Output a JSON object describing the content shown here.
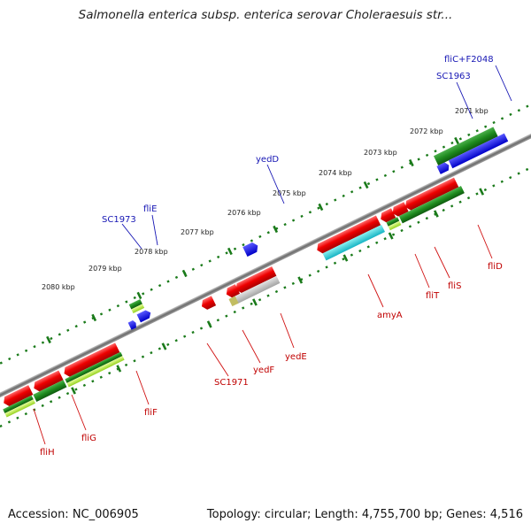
{
  "title": "Salmonella enterica subsp. enterica serovar Choleraesuis str...",
  "footer": {
    "accession": "Accession: NC_006905",
    "topology": "Topology: circular; Length: 4,755,700 bp; Genes: 4,516"
  },
  "kbp_ticks": [
    "2071 kbp",
    "2072 kbp",
    "2073 kbp",
    "2074 kbp",
    "2075 kbp",
    "2076 kbp",
    "2077 kbp",
    "2078 kbp",
    "2079 kbp",
    "2080 kbp"
  ],
  "gene_labels": {
    "blue": [
      "fliC+F2048",
      "SC1963",
      "yedD",
      "fliE",
      "SC1973"
    ],
    "red": [
      "fliD",
      "fliS",
      "fliT",
      "amyA",
      "yedE",
      "yedF",
      "SC1971",
      "fliF",
      "fliG",
      "fliH"
    ]
  },
  "colors": {
    "forward_gene": "#e00000",
    "reverse_gene": "#e00000",
    "rna_blue": "#1a1adc",
    "green": "#1e8a1e",
    "light_green": "#b4ee3c",
    "cyan": "#2ad4d4",
    "grey": "#b0b0b0",
    "backbone": "#7a7a7a",
    "tick_green": "#1a7a1a"
  }
}
